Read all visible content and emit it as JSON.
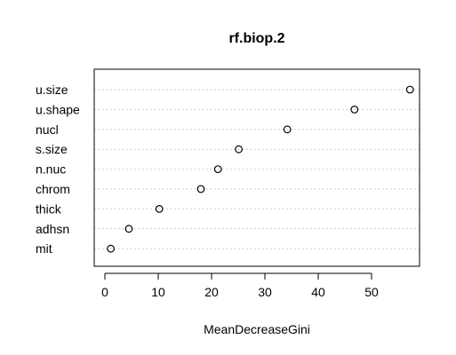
{
  "chart_data": {
    "type": "scatter",
    "title": "rf.biop.2",
    "xlabel": "MeanDecreaseGini",
    "ylabel": "",
    "categories": [
      "u.size",
      "u.shape",
      "nucl",
      "s.size",
      "n.nuc",
      "chrom",
      "thick",
      "adhsn",
      "mit"
    ],
    "values": [
      57.2,
      46.8,
      34.2,
      25.1,
      21.2,
      18.0,
      10.2,
      4.5,
      1.1
    ],
    "xlim": [
      -2,
      59
    ],
    "xticks": [
      0,
      10,
      20,
      30,
      40,
      50
    ],
    "xtick_labels": [
      "0",
      "10",
      "20",
      "30",
      "40",
      "50"
    ],
    "grid": "dotted horizontal lines per category",
    "legend": "none",
    "marker": "open-circle",
    "colors": {
      "axis": "#000000",
      "grid": "#bebebe",
      "point": "#000000"
    }
  }
}
